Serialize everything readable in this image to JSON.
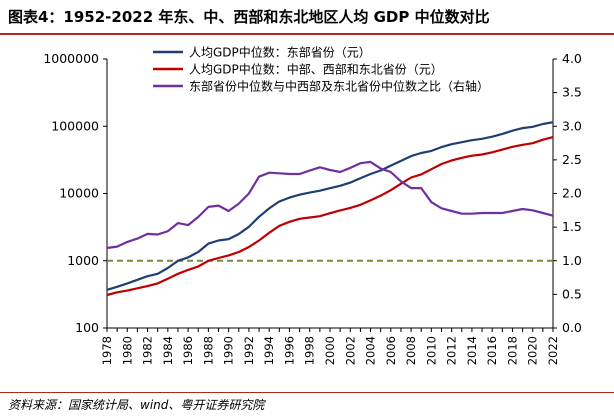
{
  "figure": {
    "title": "图表4：1952-2022 年东、中、西部和东北地区人均 GDP 中位数对比",
    "source": "资料来源：国家统计局、wind、粤开证券研究院"
  },
  "chart_data": {
    "type": "line",
    "x": [
      1978,
      1979,
      1980,
      1981,
      1982,
      1983,
      1984,
      1985,
      1986,
      1987,
      1988,
      1989,
      1990,
      1991,
      1992,
      1993,
      1994,
      1995,
      1996,
      1997,
      1998,
      1999,
      2000,
      2001,
      2002,
      2003,
      2004,
      2005,
      2006,
      2007,
      2008,
      2009,
      2010,
      2011,
      2012,
      2013,
      2014,
      2015,
      2016,
      2017,
      2018,
      2019,
      2020,
      2021,
      2022
    ],
    "x_tick_labels": [
      "1978",
      "1980",
      "1982",
      "1984",
      "1986",
      "1988",
      "1990",
      "1992",
      "1994",
      "1996",
      "1998",
      "2000",
      "2002",
      "2004",
      "2006",
      "2008",
      "2010",
      "2012",
      "2014",
      "2016",
      "2018",
      "2020",
      "2022"
    ],
    "y_left": {
      "scale": "log",
      "range": [
        100,
        1000000
      ],
      "tick_labels": [
        "100",
        "1000",
        "10000",
        "100000",
        "1000000"
      ]
    },
    "y_right": {
      "scale": "linear",
      "range": [
        0,
        4
      ],
      "tick_labels": [
        "0.0",
        "0.5",
        "1.0",
        "1.5",
        "2.0",
        "2.5",
        "3.0",
        "3.5",
        "4.0"
      ]
    },
    "reference_line": {
      "axis": "right",
      "value": 1.0,
      "style": "dashed",
      "color": "#7a8a3a"
    },
    "legend_position": "top-center",
    "series": [
      {
        "name": "人均GDP中位数：东部省份（元）",
        "axis": "left",
        "color": "#1f3f73",
        "values": [
          370,
          410,
          460,
          520,
          590,
          640,
          780,
          1000,
          1120,
          1350,
          1800,
          2000,
          2100,
          2500,
          3200,
          4500,
          6000,
          7600,
          8700,
          9600,
          10300,
          11000,
          12000,
          13000,
          14500,
          16800,
          19500,
          22000,
          26000,
          30500,
          36000,
          40000,
          43000,
          49000,
          54000,
          58000,
          62000,
          65000,
          70000,
          77000,
          86000,
          94000,
          98000,
          108000,
          115000
        ]
      },
      {
        "name": "人均GDP中位数：中部、西部和东北省份（元）",
        "axis": "left",
        "color": "#c00000",
        "values": [
          310,
          340,
          360,
          390,
          420,
          460,
          540,
          640,
          730,
          820,
          1000,
          1100,
          1200,
          1350,
          1600,
          2000,
          2600,
          3300,
          3800,
          4200,
          4400,
          4600,
          5100,
          5600,
          6100,
          6800,
          7900,
          9300,
          11200,
          14000,
          17300,
          19200,
          23000,
          27500,
          31000,
          34000,
          36500,
          38000,
          41000,
          45000,
          49500,
          53000,
          56000,
          63000,
          69000
        ]
      },
      {
        "name": "东部省份中位数与中西部及东北省份中位数之比（右轴）",
        "axis": "right",
        "color": "#7030a0",
        "values": [
          1.19,
          1.21,
          1.28,
          1.33,
          1.4,
          1.39,
          1.44,
          1.56,
          1.53,
          1.65,
          1.8,
          1.82,
          1.74,
          1.85,
          2.0,
          2.25,
          2.31,
          2.3,
          2.29,
          2.29,
          2.34,
          2.39,
          2.35,
          2.32,
          2.38,
          2.45,
          2.47,
          2.37,
          2.32,
          2.18,
          2.08,
          2.08,
          1.87,
          1.78,
          1.74,
          1.7,
          1.7,
          1.71,
          1.71,
          1.71,
          1.74,
          1.77,
          1.75,
          1.71,
          1.67
        ]
      }
    ]
  }
}
